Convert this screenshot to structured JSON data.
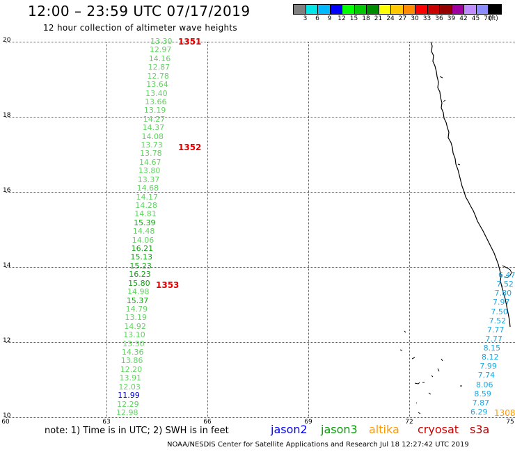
{
  "header": {
    "title": "12:00 – 23:59 UTC 07/17/2019",
    "subtitle": "12 hour collection of altimeter wave heights"
  },
  "legend": {
    "colors": [
      "#808080",
      "#00e5e5",
      "#00b8ff",
      "#0000ff",
      "#00ff00",
      "#00c800",
      "#008c00",
      "#ffff00",
      "#ffc800",
      "#ff8c00",
      "#ff0000",
      "#c80000",
      "#960000",
      "#a000a0",
      "#c08cff",
      "#8c8cff",
      "#000000"
    ],
    "labels": [
      "3",
      "6",
      "9",
      "12",
      "15",
      "18",
      "21",
      "24",
      "27",
      "30",
      "33",
      "36",
      "39",
      "42",
      "45",
      "70",
      "(ft)"
    ]
  },
  "axes": {
    "lat_labels": [
      "20",
      "18",
      "16",
      "14",
      "12",
      "10"
    ],
    "lon_labels": [
      "60",
      "63",
      "66",
      "69",
      "72",
      "75"
    ]
  },
  "waves_left": [
    {
      "v": "13.30",
      "c": "#5fd35f"
    },
    {
      "v": "12.97",
      "c": "#5fd35f"
    },
    {
      "v": "14.16",
      "c": "#5fd35f"
    },
    {
      "v": "12.87",
      "c": "#5fd35f"
    },
    {
      "v": "12.78",
      "c": "#5fd35f"
    },
    {
      "v": "13.64",
      "c": "#5fd35f"
    },
    {
      "v": "13.40",
      "c": "#5fd35f"
    },
    {
      "v": "13.66",
      "c": "#5fd35f"
    },
    {
      "v": "13.19",
      "c": "#5fd35f"
    },
    {
      "v": "14.27",
      "c": "#5fd35f"
    },
    {
      "v": "14.37",
      "c": "#5fd35f"
    },
    {
      "v": "14.08",
      "c": "#5fd35f"
    },
    {
      "v": "13.73",
      "c": "#5fd35f"
    },
    {
      "v": "13.78",
      "c": "#5fd35f"
    },
    {
      "v": "14.67",
      "c": "#5fd35f"
    },
    {
      "v": "13.80",
      "c": "#5fd35f"
    },
    {
      "v": "13.37",
      "c": "#5fd35f"
    },
    {
      "v": "14.68",
      "c": "#5fd35f"
    },
    {
      "v": "14.17",
      "c": "#5fd35f"
    },
    {
      "v": "14.28",
      "c": "#5fd35f"
    },
    {
      "v": "14.81",
      "c": "#5fd35f"
    },
    {
      "v": "15.39",
      "c": "#13a013"
    },
    {
      "v": "14.48",
      "c": "#5fd35f"
    },
    {
      "v": "14.06",
      "c": "#5fd35f"
    },
    {
      "v": "16.21",
      "c": "#13a013"
    },
    {
      "v": "15.13",
      "c": "#13a013"
    },
    {
      "v": "15.23",
      "c": "#13a013"
    },
    {
      "v": "16.23",
      "c": "#13a013"
    },
    {
      "v": "15.80",
      "c": "#13a013"
    },
    {
      "v": "14.98",
      "c": "#5fd35f"
    },
    {
      "v": "15.37",
      "c": "#13a013"
    },
    {
      "v": "14.79",
      "c": "#5fd35f"
    },
    {
      "v": "13.19",
      "c": "#5fd35f"
    },
    {
      "v": "14.92",
      "c": "#5fd35f"
    },
    {
      "v": "13.10",
      "c": "#5fd35f"
    },
    {
      "v": "13.30",
      "c": "#5fd35f"
    },
    {
      "v": "14.36",
      "c": "#5fd35f"
    },
    {
      "v": "13.86",
      "c": "#5fd35f"
    },
    {
      "v": "12.20",
      "c": "#5fd35f"
    },
    {
      "v": "13.91",
      "c": "#5fd35f"
    },
    {
      "v": "12.03",
      "c": "#5fd35f"
    },
    {
      "v": "11.99",
      "c": "#0000cc"
    },
    {
      "v": "12.29",
      "c": "#5fd35f"
    },
    {
      "v": "12.98",
      "c": "#5fd35f"
    }
  ],
  "waves_right": [
    {
      "v": "6.47"
    },
    {
      "v": "7.52"
    },
    {
      "v": "7.80"
    },
    {
      "v": "7.97"
    },
    {
      "v": "7.50"
    },
    {
      "v": "7.52"
    },
    {
      "v": "7.77"
    },
    {
      "v": "7.77"
    },
    {
      "v": "8.15"
    },
    {
      "v": "8.12"
    },
    {
      "v": "7.99"
    },
    {
      "v": "7.74"
    },
    {
      "v": "8.06"
    },
    {
      "v": "8.59"
    },
    {
      "v": "7.87"
    },
    {
      "v": "6.29"
    }
  ],
  "waves_right_color": "#1aa6e0",
  "time_labels": [
    "1351",
    "1352",
    "1353"
  ],
  "orange_time_label": "1308",
  "orange_color": "#ff9900",
  "note": "note: 1) Time is in UTC; 2) SWH is in feet",
  "satellites": [
    {
      "name": "jason2",
      "color": "#0000ff"
    },
    {
      "name": "jason3",
      "color": "#00a000"
    },
    {
      "name": "altika",
      "color": "#ff9900"
    },
    {
      "name": "cryosat",
      "color": "#cc0000"
    },
    {
      "name": "s3a",
      "color": "#b00000"
    }
  ],
  "footer": "NOAA/NESDIS Center for Satellite Applications and Research    Jul 18 12:27:42 UTC 2019"
}
